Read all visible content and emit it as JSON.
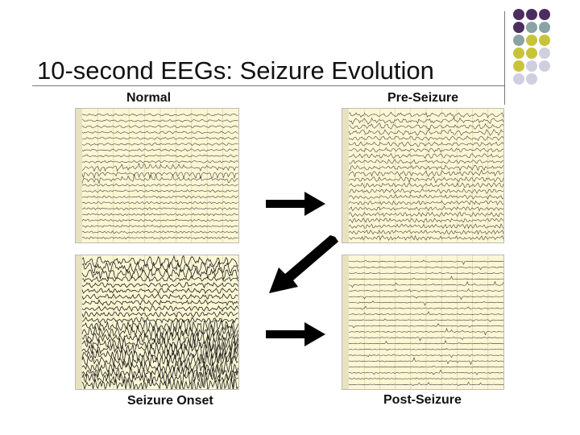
{
  "slide": {
    "title": "10-second EEGs: Seizure Evolution"
  },
  "panels": [
    {
      "id": "normal",
      "label": "Normal",
      "style": "normal"
    },
    {
      "id": "pre-seizure",
      "label": "Pre-Seizure",
      "style": "pre"
    },
    {
      "id": "seizure-onset",
      "label": "Seizure Onset",
      "style": "onset"
    },
    {
      "id": "post-seizure",
      "label": "Post-Seizure",
      "style": "post"
    }
  ],
  "arrows": [
    {
      "id": "arrow-normal-to-pre",
      "direction": "right"
    },
    {
      "id": "arrow-pre-to-onset",
      "direction": "down-left"
    },
    {
      "id": "arrow-onset-to-post",
      "direction": "right"
    }
  ],
  "colors": {
    "eeg_background": "#fbf6d4",
    "trace": "#333333",
    "dot_purple": "#4b2e5e",
    "dot_teal": "#8aa3a3",
    "dot_olive": "#c8c43a",
    "dot_lavender": "#cfcfe0"
  }
}
